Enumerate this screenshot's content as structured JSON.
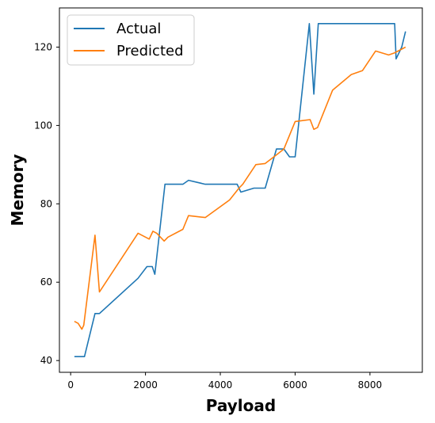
{
  "chart_data": {
    "type": "line",
    "title": "",
    "xlabel": "Payload",
    "ylabel": "Memory",
    "xlim": [
      -300,
      9400
    ],
    "ylim": [
      37,
      130
    ],
    "xticks": [
      0,
      2000,
      4000,
      6000,
      8000
    ],
    "yticks": [
      40,
      60,
      80,
      100,
      120
    ],
    "xtick_labels": [
      "0",
      "2000",
      "4000",
      "6000",
      "8000"
    ],
    "ytick_labels": [
      "40",
      "60",
      "80",
      "100",
      "120"
    ],
    "grid": false,
    "legend": "top-left",
    "series": [
      {
        "name": "Actual",
        "color": "#1f77b4",
        "x": [
          100,
          370,
          650,
          770,
          1800,
          2040,
          2180,
          2250,
          2520,
          3000,
          3150,
          3600,
          4200,
          4450,
          4550,
          4900,
          5200,
          5500,
          5700,
          5850,
          6000,
          6380,
          6500,
          6620,
          8660,
          8700,
          8850,
          8950
        ],
        "y": [
          41,
          41,
          52,
          52,
          61,
          64,
          64,
          62,
          85,
          85,
          86,
          85,
          85,
          85,
          83,
          84,
          84,
          94,
          94,
          92,
          92,
          126,
          108,
          126,
          126,
          117,
          120,
          124
        ]
      },
      {
        "name": "Predicted",
        "color": "#ff7f0e",
        "x": [
          100,
          200,
          300,
          350,
          650,
          770,
          1800,
          2100,
          2200,
          2300,
          2500,
          2600,
          3000,
          3150,
          3600,
          4250,
          4500,
          4600,
          4950,
          5200,
          5500,
          5700,
          6000,
          6400,
          6500,
          6600,
          7000,
          7500,
          7800,
          8150,
          8500,
          8650,
          8950
        ],
        "y": [
          50,
          49.5,
          48,
          49,
          72,
          57.5,
          72.5,
          71,
          73,
          72.5,
          70.5,
          71.5,
          73.5,
          77,
          76.5,
          81,
          84,
          85,
          90,
          90.3,
          92.5,
          94,
          101,
          101.5,
          99,
          99.5,
          109,
          113,
          114,
          119,
          118,
          118.5,
          120
        ]
      }
    ]
  }
}
